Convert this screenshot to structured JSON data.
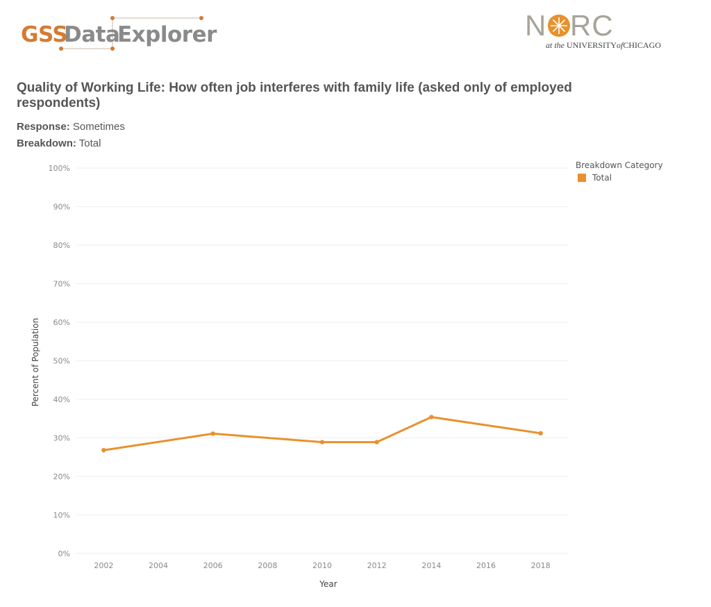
{
  "header": {
    "gss_logo": {
      "word1": "GSS",
      "word2": "Data",
      "word3": "Explorer"
    },
    "norc_logo": {
      "word": "NORC",
      "sub_prefix": "at the ",
      "sub_university": "UNIVERSITY",
      "sub_of": "of",
      "sub_city": "CHICAGO"
    }
  },
  "title": "Quality of Working Life: How often job interferes with family life (asked only of employed respondents)",
  "response": {
    "label": "Response:",
    "value": "Sometimes"
  },
  "breakdown": {
    "label": "Breakdown:",
    "value": "Total"
  },
  "legend": {
    "title": "Breakdown Category",
    "items": [
      "Total"
    ]
  },
  "colors": {
    "series": "#e8912d",
    "brand_orange": "#d47b32",
    "brand_gray": "#8a8a8a",
    "grid": "#eeeeee"
  },
  "chart_data": {
    "type": "line",
    "xlabel": "Year",
    "ylabel": "Percent of Population",
    "xlim": [
      2001,
      2019
    ],
    "ylim": [
      0,
      100
    ],
    "xticks": [
      2002,
      2004,
      2006,
      2008,
      2010,
      2012,
      2014,
      2016,
      2018
    ],
    "yticks": [
      0,
      10,
      20,
      30,
      40,
      50,
      60,
      70,
      80,
      90,
      100
    ],
    "ytick_labels": [
      "0%",
      "10%",
      "20%",
      "30%",
      "40%",
      "50%",
      "60%",
      "70%",
      "80%",
      "90%",
      "100%"
    ],
    "grid": true,
    "legend_position": "top-right",
    "series": [
      {
        "name": "Total",
        "x": [
          2002,
          2006,
          2010,
          2012,
          2014,
          2018
        ],
        "values": [
          26.8,
          31.1,
          28.9,
          28.9,
          35.4,
          31.2
        ]
      }
    ]
  }
}
